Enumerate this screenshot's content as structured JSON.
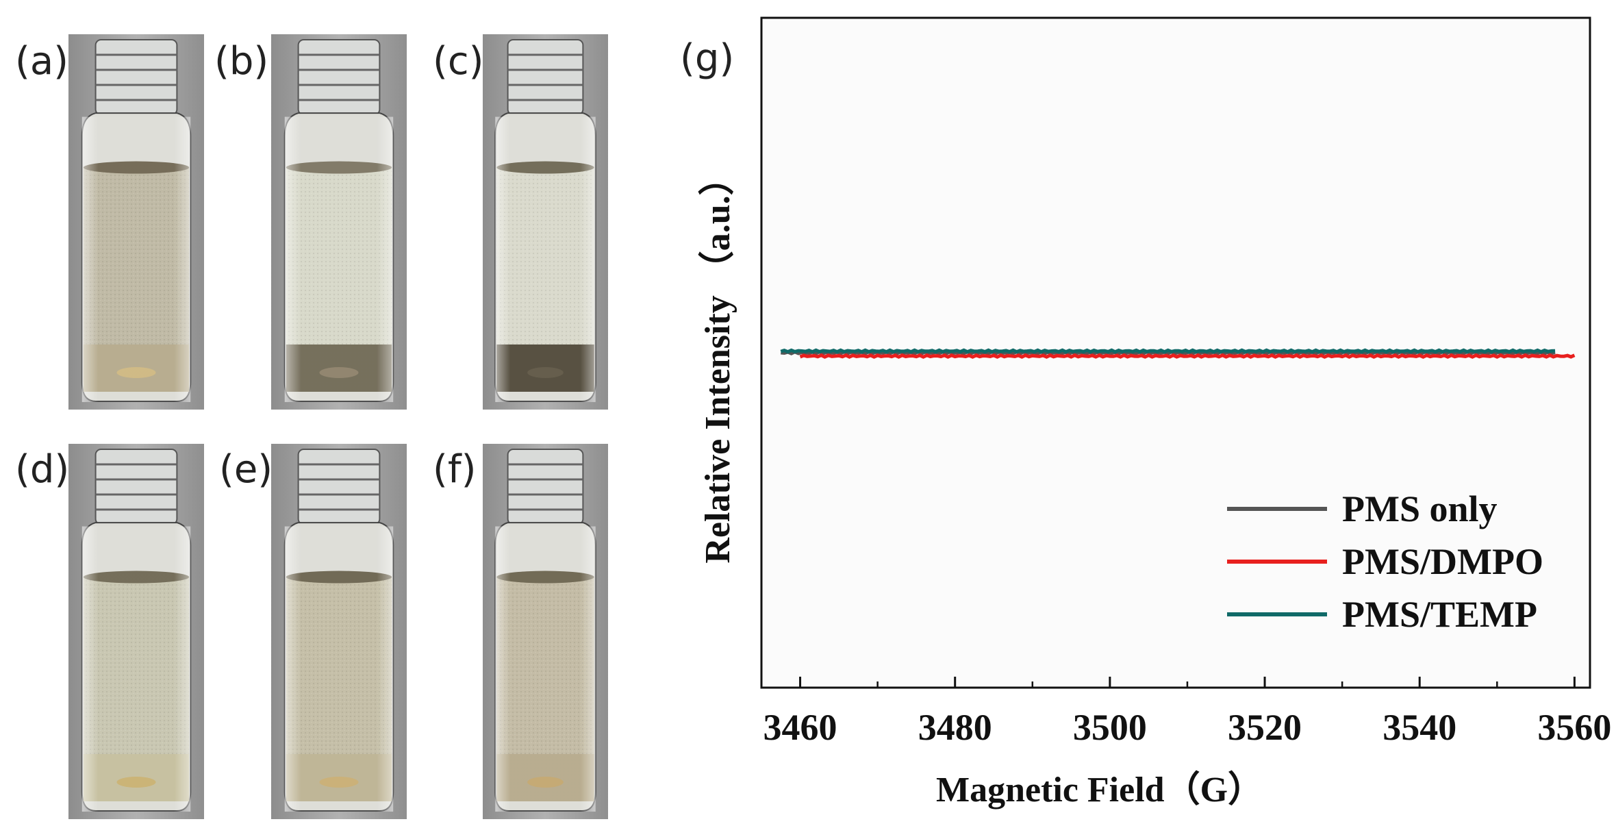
{
  "vials": [
    {
      "label": "(a)",
      "liquid": "#bdb7a1",
      "meniscus": "#6f6550",
      "bottom": "#b4a98a",
      "sediment": "#cdb780"
    },
    {
      "label": "(b)",
      "liquid": "#d6d7c7",
      "meniscus": "#7b7461",
      "bottom": "#6f6854",
      "sediment": "#8c8068"
    },
    {
      "label": "(c)",
      "liquid": "#d8d8ca",
      "meniscus": "#6d6652",
      "bottom": "#4f4838",
      "sediment": "#5e5644"
    },
    {
      "label": "(d)",
      "liquid": "#c6c4ae",
      "meniscus": "#6e6752",
      "bottom": "#c4be9c",
      "sediment": "#c8b070"
    },
    {
      "label": "(e)",
      "liquid": "#c2bca3",
      "meniscus": "#6a624d",
      "bottom": "#bcb292",
      "sediment": "#c8ad72"
    },
    {
      "label": "(f)",
      "liquid": "#c1b9a1",
      "meniscus": "#6b634d",
      "bottom": "#b5a98a",
      "sediment": "#c2a66e"
    }
  ],
  "chart": {
    "panel_label": "(g)",
    "colors": {
      "axis": "#111111",
      "plot_bg": "#fbfbfb"
    }
  },
  "chart_data": {
    "type": "line",
    "xlabel": "Magnetic Field（G）",
    "ylabel": "Relative Intensity （a.u.）",
    "xlim": [
      3455,
      3562
    ],
    "ylim": [
      -1,
      1
    ],
    "xticks": [
      3460,
      3480,
      3500,
      3520,
      3540,
      3560
    ],
    "grid": false,
    "legend_position": "bottom-right",
    "series": [
      {
        "name": "PMS only",
        "color": "#555555",
        "x": [
          3457.5,
          3557.5
        ],
        "y": [
          0.0,
          0.0
        ]
      },
      {
        "name": "PMS/DMPO",
        "color": "#e8201e",
        "x": [
          3460,
          3560
        ],
        "y": [
          -0.01,
          -0.01
        ]
      },
      {
        "name": "PMS/TEMP",
        "color": "#106a68",
        "x": [
          3457.5,
          3557.5
        ],
        "y": [
          0.005,
          0.005
        ]
      }
    ]
  }
}
